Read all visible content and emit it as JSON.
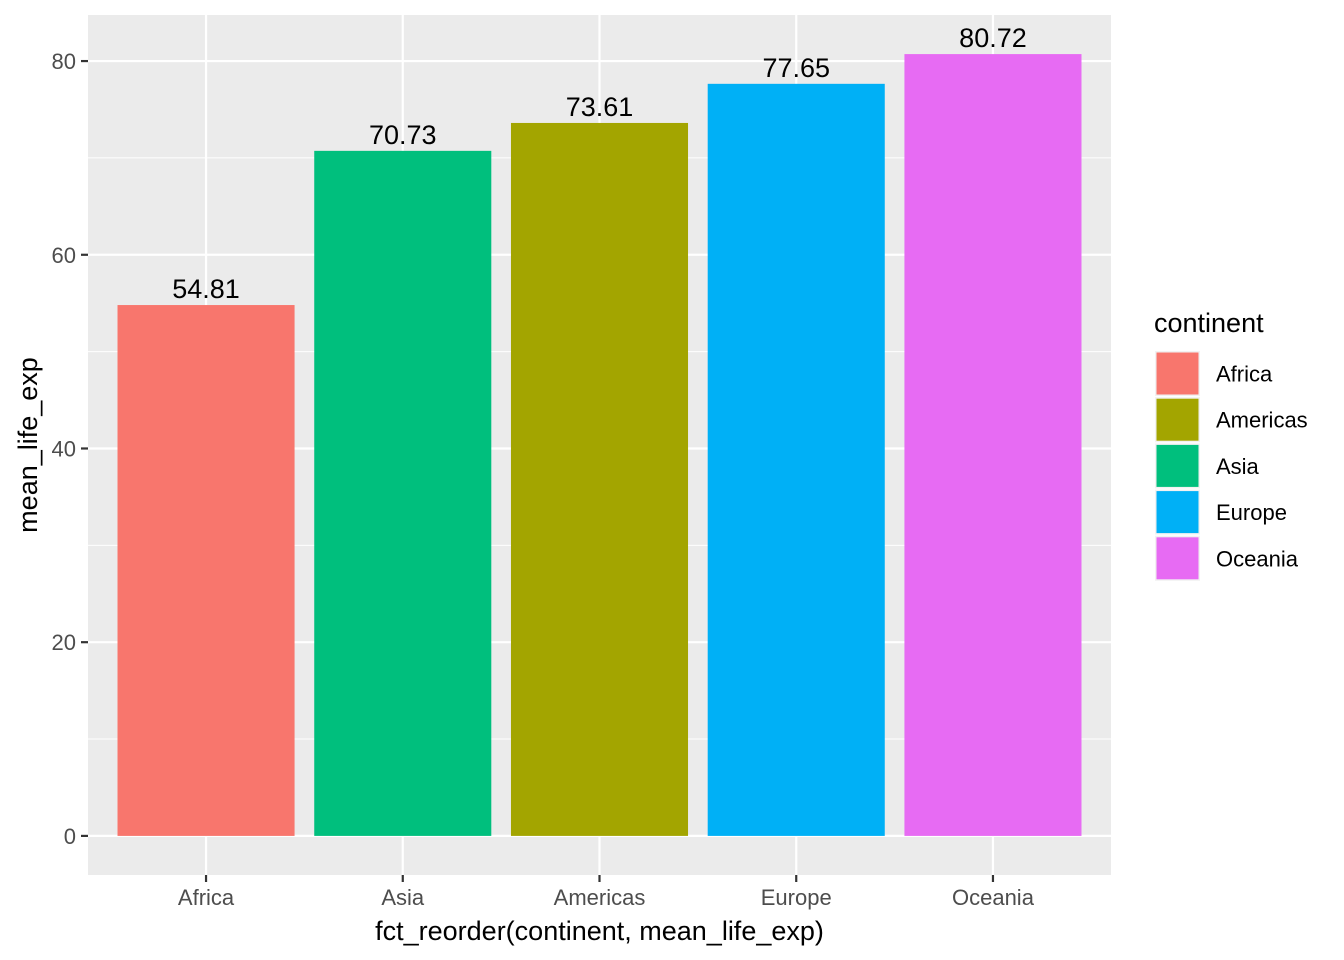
{
  "chart_data": {
    "type": "bar",
    "categories": [
      "Africa",
      "Asia",
      "Americas",
      "Europe",
      "Oceania"
    ],
    "values": [
      54.81,
      70.73,
      73.61,
      77.65,
      80.72
    ],
    "data_labels": [
      "54.81",
      "70.73",
      "73.61",
      "77.65",
      "80.72"
    ],
    "xlabel": "fct_reorder(continent, mean_life_exp)",
    "ylabel": "mean_life_exp",
    "ylim": [
      -4.036,
      84.756
    ],
    "yticks": [
      0,
      20,
      40,
      60,
      80
    ],
    "ytick_labels": [
      "0",
      "20",
      "40",
      "60",
      "80"
    ],
    "grid": true,
    "legend": {
      "title": "continent",
      "position": "right",
      "items": [
        "Africa",
        "Americas",
        "Asia",
        "Europe",
        "Oceania"
      ]
    },
    "colors": {
      "Africa": "#F8766D",
      "Americas": "#A3A500",
      "Asia": "#00BF7D",
      "Europe": "#00B0F6",
      "Oceania": "#E76BF3",
      "panel_background": "#EBEBEB",
      "grid_line": "#FFFFFF"
    }
  }
}
